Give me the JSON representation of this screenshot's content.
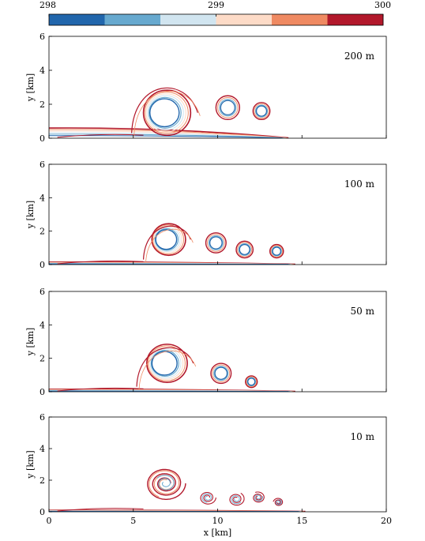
{
  "colorbar": {
    "tick_labels": [
      "298",
      "299",
      "300"
    ],
    "tick_values": [
      298,
      299,
      300
    ],
    "range": [
      298,
      300
    ],
    "levels": 6,
    "colors": [
      "#2166ac",
      "#67a9cf",
      "#d1e5f0",
      "#fddbc7",
      "#ef8a62",
      "#b2182b"
    ]
  },
  "chart_data": [
    {
      "type": "contour",
      "annotation": "200 m",
      "xlabel": "",
      "ylabel": "y [km]",
      "xlim": [
        0,
        20
      ],
      "ylim": [
        0,
        6
      ],
      "xticks": [],
      "yticks": [
        "0",
        "2",
        "4",
        "6"
      ],
      "features": {
        "primary_vortex": {
          "cx": 7.0,
          "cy": 1.5,
          "r": 1.4
        },
        "secondary_vortices": [
          {
            "cx": 10.6,
            "cy": 1.8,
            "r": 0.7
          },
          {
            "cx": 12.6,
            "cy": 1.6,
            "r": 0.5
          }
        ],
        "surface_layer": {
          "x_start": 0,
          "x_end": 14.0,
          "thickness": 0.6
        },
        "front_position_km": 14.2,
        "cloud_top_km": 3.5
      }
    },
    {
      "type": "contour",
      "annotation": "100 m",
      "xlabel": "",
      "ylabel": "y [km]",
      "xlim": [
        0,
        20
      ],
      "ylim": [
        0,
        6
      ],
      "xticks": [],
      "yticks": [
        "0",
        "2",
        "4",
        "6"
      ],
      "features": {
        "primary_vortex": {
          "cx": 7.1,
          "cy": 1.5,
          "r": 1.0
        },
        "secondary_vortices": [
          {
            "cx": 9.9,
            "cy": 1.3,
            "r": 0.6
          },
          {
            "cx": 11.6,
            "cy": 0.9,
            "r": 0.5
          },
          {
            "cx": 13.5,
            "cy": 0.8,
            "r": 0.4
          }
        ],
        "surface_layer": {
          "x_start": 0,
          "x_end": 14.6,
          "thickness": 0.15
        },
        "front_position_km": 14.6,
        "cloud_top_km": 2.6
      }
    },
    {
      "type": "contour",
      "annotation": "50 m",
      "xlabel": "",
      "ylabel": "y [km]",
      "xlim": [
        0,
        20
      ],
      "ylim": [
        0,
        6
      ],
      "xticks": [],
      "yticks": [
        "0",
        "2",
        "4",
        "6"
      ],
      "features": {
        "primary_vortex": {
          "cx": 7.0,
          "cy": 1.7,
          "r": 1.2
        },
        "secondary_vortices": [
          {
            "cx": 10.2,
            "cy": 1.1,
            "r": 0.6
          },
          {
            "cx": 12.0,
            "cy": 0.6,
            "r": 0.35
          }
        ],
        "surface_layer": {
          "x_start": 0,
          "x_end": 14.6,
          "thickness": 0.15
        },
        "front_position_km": 14.6,
        "cloud_top_km": 3.0
      }
    },
    {
      "type": "contour",
      "annotation": "10 m",
      "xlabel": "x [km]",
      "ylabel": "y [km]",
      "xlim": [
        0,
        20
      ],
      "ylim": [
        0,
        6
      ],
      "xticks": [
        "0",
        "5",
        "10",
        "15",
        "20"
      ],
      "yticks": [
        "0",
        "2",
        "4",
        "6"
      ],
      "features": {
        "primary_vortex": {
          "cx": 6.9,
          "cy": 1.8,
          "r": 1.2
        },
        "secondary_vortices": [
          {
            "cx": 9.4,
            "cy": 0.9,
            "r": 0.5
          },
          {
            "cx": 11.1,
            "cy": 0.8,
            "r": 0.5
          },
          {
            "cx": 12.4,
            "cy": 0.9,
            "r": 0.4
          },
          {
            "cx": 13.6,
            "cy": 0.6,
            "r": 0.3
          }
        ],
        "surface_layer": {
          "x_start": 0,
          "x_end": 15.0,
          "thickness": 0.1
        },
        "front_position_km": 15.2,
        "cloud_top_km": 3.0
      }
    }
  ]
}
